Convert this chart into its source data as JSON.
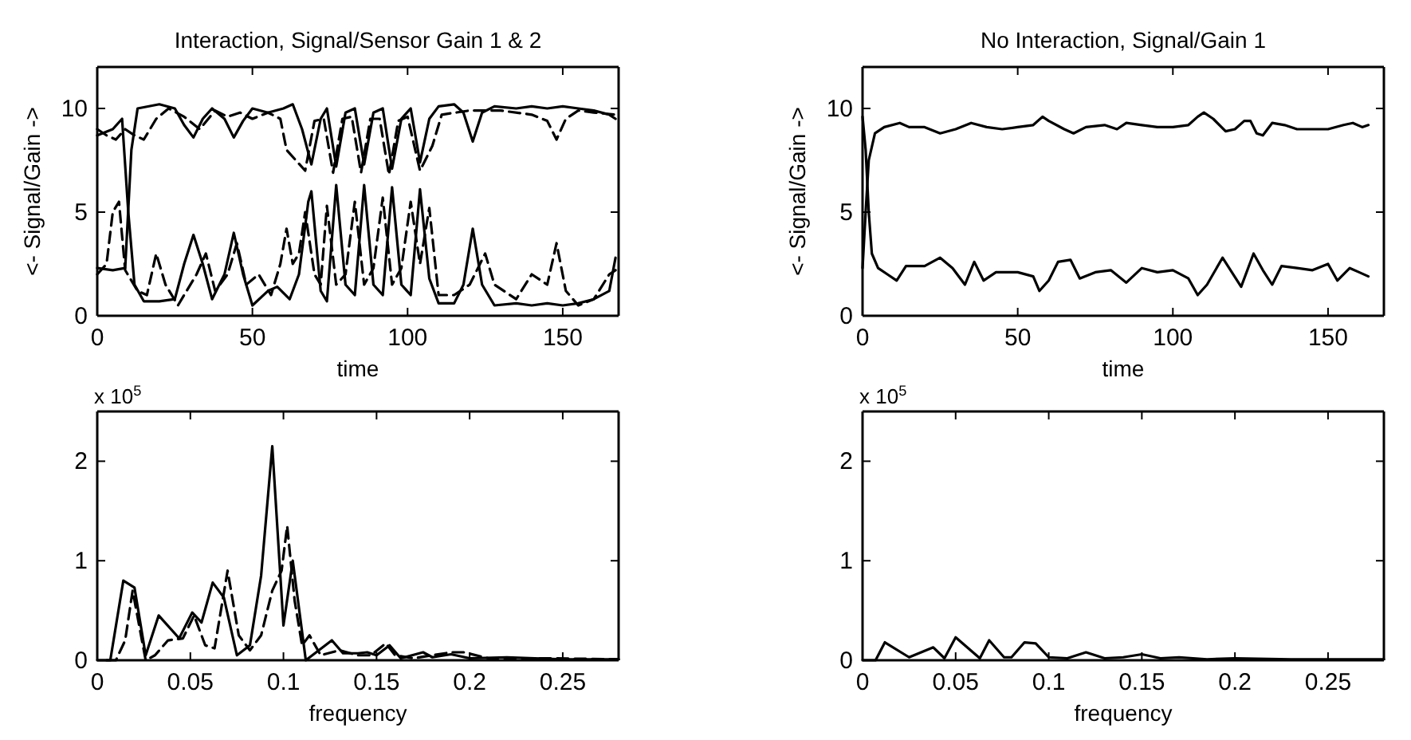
{
  "chart_data": [
    {
      "type": "line",
      "title": "Interaction, Signal/Sensor Gain 1 & 2",
      "xlabel": "time",
      "ylabel": "<- Signal/Gain ->",
      "xlim": [
        0,
        168
      ],
      "ylim": [
        0,
        12
      ],
      "xticks": [
        0,
        50,
        100,
        150
      ],
      "yticks": [
        0,
        5,
        10
      ],
      "grid": false,
      "series": [
        {
          "color": "#000000",
          "line_style": "solid",
          "x": [
            0,
            5,
            9,
            11,
            13,
            20,
            25,
            28,
            31,
            34,
            37,
            41,
            44,
            47,
            50,
            55,
            60,
            63,
            66,
            69,
            72,
            74,
            77,
            80,
            83,
            86,
            89,
            92,
            95,
            98,
            101,
            104,
            107,
            110,
            115,
            118,
            121,
            124,
            128,
            135,
            140,
            145,
            150,
            155,
            160,
            165,
            167
          ],
          "values": [
            2.3,
            2.2,
            2.3,
            8,
            10,
            10.2,
            10,
            9.2,
            8.6,
            9.5,
            10,
            9.5,
            8.6,
            9.4,
            10,
            9.8,
            10,
            10.2,
            9,
            7.3,
            9.5,
            10,
            7.2,
            9.8,
            10,
            7.3,
            9.8,
            10,
            7.1,
            9.5,
            10,
            7.4,
            9.5,
            10.1,
            10.2,
            9.8,
            8.4,
            9.8,
            10.1,
            10,
            10.1,
            10,
            10.1,
            10,
            9.9,
            9.7,
            9.5
          ]
        },
        {
          "color": "#000000",
          "line_style": "solid",
          "x": [
            0,
            5,
            8,
            10,
            12,
            15,
            20,
            25,
            28,
            31,
            34,
            37,
            41,
            44,
            47,
            50,
            55,
            58,
            62,
            65,
            68,
            69,
            72,
            74,
            77,
            80,
            83,
            86,
            89,
            92,
            95,
            98,
            101,
            104,
            107,
            110,
            115,
            118,
            121,
            124,
            128,
            135,
            140,
            145,
            150,
            155,
            160,
            165,
            167
          ],
          "values": [
            8.7,
            9,
            9.5,
            5,
            1.5,
            0.7,
            0.7,
            0.8,
            2.5,
            3.9,
            2.5,
            0.8,
            2,
            4,
            2,
            0.5,
            1.2,
            1.4,
            0.8,
            2,
            5.5,
            6,
            1.2,
            0.7,
            6.3,
            1.5,
            1,
            6.3,
            1.5,
            1,
            6.2,
            1.5,
            1,
            6.1,
            1.8,
            0.6,
            0.6,
            1.5,
            4.2,
            1.5,
            0.5,
            0.6,
            0.5,
            0.6,
            0.5,
            0.6,
            0.8,
            1.2,
            2.8
          ]
        },
        {
          "color": "#000000",
          "line_style": "dashed",
          "x": [
            0,
            3,
            6,
            9,
            12,
            15,
            19,
            23,
            28,
            33,
            38,
            42,
            46,
            50,
            55,
            59,
            61,
            64,
            67,
            70,
            73,
            76,
            79,
            82,
            85,
            88,
            91,
            94,
            97,
            100,
            104,
            108,
            111,
            120,
            130,
            140,
            145,
            148,
            151,
            155,
            160,
            167
          ],
          "values": [
            9,
            8.7,
            8.5,
            9,
            8.7,
            8.5,
            9.5,
            10,
            9.6,
            9,
            9.9,
            9.6,
            9.8,
            9.5,
            9.8,
            9.5,
            8,
            7.5,
            7,
            9.4,
            9.5,
            6.9,
            9.5,
            9.6,
            6.9,
            9.5,
            9.5,
            6.8,
            9.4,
            9.6,
            7,
            8.2,
            9.7,
            9.9,
            9.9,
            9.7,
            9.4,
            8.5,
            9.5,
            9.9,
            9.8,
            9.7
          ]
        },
        {
          "color": "#000000",
          "line_style": "dashed",
          "x": [
            0,
            3,
            5,
            7,
            9,
            13,
            16,
            19,
            22,
            26,
            32,
            35,
            38,
            42,
            45,
            48,
            52,
            56,
            59,
            61,
            63,
            65,
            67,
            70,
            72,
            74,
            77,
            80,
            83,
            86,
            89,
            92,
            95,
            98,
            101,
            104,
            107,
            110,
            115,
            120,
            125,
            128,
            135,
            140,
            145,
            148,
            151,
            155,
            160,
            165,
            167
          ],
          "values": [
            2,
            2.5,
            5,
            5.5,
            2.2,
            1.2,
            1,
            3,
            1.5,
            0.5,
            2,
            3,
            1.2,
            2,
            3.5,
            1.5,
            2,
            1,
            2.5,
            4.2,
            2.5,
            3,
            5,
            2,
            1.5,
            5.3,
            1.5,
            2,
            5.5,
            1.5,
            2.3,
            5.7,
            1.5,
            2.3,
            5.5,
            2.5,
            5.2,
            1,
            1,
            1.5,
            3,
            1.5,
            0.8,
            2,
            1.5,
            3.5,
            1.2,
            0.5,
            0.8,
            2,
            2.2
          ]
        }
      ]
    },
    {
      "type": "line",
      "title": "No Interaction, Signal/Gain 1",
      "xlabel": "time",
      "ylabel": "<- Signal/Gain ->",
      "xlim": [
        0,
        168
      ],
      "ylim": [
        0,
        12
      ],
      "xticks": [
        0,
        50,
        100,
        150
      ],
      "yticks": [
        0,
        5,
        10
      ],
      "grid": false,
      "series": [
        {
          "color": "#000000",
          "line_style": "solid",
          "x": [
            0,
            1,
            2,
            4,
            7,
            12,
            15,
            20,
            25,
            30,
            35,
            40,
            45,
            50,
            55,
            58,
            60,
            65,
            68,
            72,
            78,
            82,
            85,
            90,
            95,
            100,
            105,
            108,
            110,
            113,
            117,
            120,
            123,
            125,
            127,
            129,
            132,
            136,
            140,
            145,
            150,
            155,
            158,
            161,
            163
          ],
          "values": [
            2.3,
            5,
            7.5,
            8.8,
            9.1,
            9.3,
            9.1,
            9.1,
            8.8,
            9,
            9.3,
            9.1,
            9,
            9.1,
            9.2,
            9.6,
            9.4,
            9,
            8.8,
            9.1,
            9.2,
            9,
            9.3,
            9.2,
            9.1,
            9.1,
            9.2,
            9.6,
            9.8,
            9.5,
            8.9,
            9,
            9.4,
            9.4,
            8.8,
            8.7,
            9.3,
            9.2,
            9,
            9,
            9,
            9.2,
            9.3,
            9.1,
            9.2
          ]
        },
        {
          "color": "#000000",
          "line_style": "solid",
          "x": [
            0,
            1,
            2,
            3,
            5,
            8,
            11,
            14,
            20,
            25,
            29,
            33,
            36,
            39,
            43,
            50,
            55,
            57,
            60,
            63,
            67,
            70,
            75,
            80,
            85,
            90,
            95,
            100,
            105,
            108,
            111,
            116,
            119,
            122,
            126,
            129,
            132,
            135,
            140,
            145,
            150,
            153,
            157,
            160,
            163
          ],
          "values": [
            9.6,
            8,
            5,
            3,
            2.3,
            2,
            1.7,
            2.4,
            2.4,
            2.8,
            2.3,
            1.5,
            2.6,
            1.7,
            2.1,
            2.1,
            1.9,
            1.2,
            1.7,
            2.6,
            2.7,
            1.8,
            2.1,
            2.2,
            1.6,
            2.3,
            2.1,
            2.2,
            1.8,
            1,
            1.5,
            2.8,
            2.1,
            1.4,
            3,
            2.2,
            1.5,
            2.4,
            2.3,
            2.2,
            2.5,
            1.7,
            2.3,
            2.1,
            1.9
          ]
        }
      ]
    },
    {
      "type": "line",
      "xlabel": "frequency",
      "annotations": [
        "x 10$^{5}$"
      ],
      "xlim": [
        0,
        0.28
      ],
      "ylim": [
        0,
        2.5
      ],
      "xticks": [
        0,
        0.05,
        0.1,
        0.15,
        0.2,
        0.25
      ],
      "yticks": [
        0,
        1,
        2
      ],
      "grid": false,
      "series": [
        {
          "color": "#000000",
          "line_style": "solid",
          "x": [
            0,
            0.007,
            0.014,
            0.02,
            0.026,
            0.033,
            0.044,
            0.051,
            0.056,
            0.062,
            0.068,
            0.075,
            0.082,
            0.088,
            0.094,
            0.1,
            0.105,
            0.112,
            0.119,
            0.126,
            0.132,
            0.14,
            0.145,
            0.15,
            0.157,
            0.163,
            0.175,
            0.18,
            0.19,
            0.2,
            0.22,
            0.25,
            0.28
          ],
          "values": [
            0,
            0,
            0.8,
            0.73,
            0.05,
            0.45,
            0.22,
            0.48,
            0.38,
            0.78,
            0.63,
            0.05,
            0.15,
            0.85,
            2.15,
            0.35,
            1,
            0,
            0.1,
            0.2,
            0.07,
            0.07,
            0.08,
            0.05,
            0.15,
            0.02,
            0.08,
            0.03,
            0.06,
            0.02,
            0.03,
            0.01,
            0.01
          ]
        },
        {
          "color": "#000000",
          "line_style": "dashed",
          "x": [
            0.005,
            0.01,
            0.015,
            0.019,
            0.026,
            0.031,
            0.038,
            0.046,
            0.052,
            0.058,
            0.063,
            0.07,
            0.076,
            0.082,
            0.088,
            0.094,
            0.099,
            0.102,
            0.106,
            0.11,
            0.114,
            0.12,
            0.13,
            0.14,
            0.147,
            0.155,
            0.16,
            0.17,
            0.19,
            0.197,
            0.21,
            0.24,
            0.28
          ],
          "values": [
            0,
            0,
            0.2,
            0.7,
            0,
            0.05,
            0.2,
            0.22,
            0.45,
            0.15,
            0.12,
            0.9,
            0.25,
            0.1,
            0.25,
            0.7,
            0.9,
            1.35,
            0.6,
            0.15,
            0.25,
            0.05,
            0.1,
            0.05,
            0.05,
            0.17,
            0.05,
            0.02,
            0.08,
            0.08,
            0.02,
            0.02,
            0.01
          ]
        }
      ]
    },
    {
      "type": "line",
      "xlabel": "frequency",
      "annotations": [
        "x 10$^{5}$"
      ],
      "xlim": [
        0,
        0.28
      ],
      "ylim": [
        0,
        2.5
      ],
      "xticks": [
        0,
        0.05,
        0.1,
        0.15,
        0.2,
        0.25
      ],
      "yticks": [
        0,
        1,
        2
      ],
      "grid": false,
      "series": [
        {
          "color": "#000000",
          "line_style": "solid",
          "x": [
            0,
            0.007,
            0.012,
            0.025,
            0.038,
            0.044,
            0.05,
            0.063,
            0.068,
            0.076,
            0.08,
            0.087,
            0.093,
            0.1,
            0.11,
            0.12,
            0.13,
            0.14,
            0.15,
            0.16,
            0.17,
            0.185,
            0.2,
            0.23,
            0.28
          ],
          "values": [
            0,
            0,
            0.18,
            0.03,
            0.13,
            0.02,
            0.23,
            0.02,
            0.2,
            0.03,
            0.03,
            0.18,
            0.17,
            0.03,
            0.02,
            0.08,
            0.02,
            0.03,
            0.06,
            0.02,
            0.03,
            0.01,
            0.02,
            0.01,
            0.01
          ]
        }
      ]
    }
  ]
}
